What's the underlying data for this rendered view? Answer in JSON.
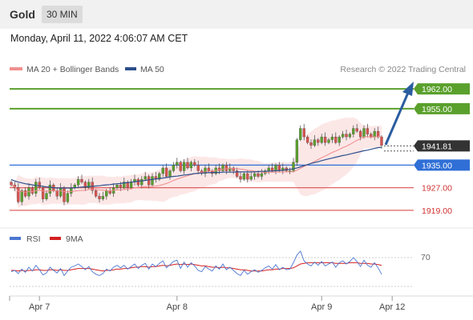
{
  "header": {
    "symbol": "Gold",
    "timeframe": "30 MIN"
  },
  "datetime": "Monday, April 11, 2022 4:06:07 AM CET",
  "legend": {
    "bollinger": "MA 20 + Bollinger Bands",
    "ma50": "MA 50",
    "credit": "Research © 2022 Trading Central"
  },
  "rsi_legend": {
    "rsi": "RSI",
    "ma": "9MA"
  },
  "colors": {
    "green": "#5aa02c",
    "blue": "#2f6fd6",
    "red": "#e06060",
    "dark": "#333333",
    "bullish": "#5aa02c",
    "bearish": "#d9534f",
    "arrow": "#2a5d9f"
  },
  "chart_data": {
    "type": "candlestick",
    "ylim": [
      1915,
      1966
    ],
    "x_ticks": [
      {
        "label": "Apr 7",
        "index": 8
      },
      {
        "label": "Apr 8",
        "index": 47
      },
      {
        "label": "Apr 9",
        "index": 88
      },
      {
        "label": "Apr 12",
        "index": 108
      }
    ],
    "levels": [
      {
        "value": 1962.0,
        "label": "1962.00",
        "kind": "resistance"
      },
      {
        "value": 1955.0,
        "label": "1955.00",
        "kind": "resistance"
      },
      {
        "value": 1941.81,
        "label": "1941.81",
        "kind": "last"
      },
      {
        "value": 1935.0,
        "label": "1935.00",
        "kind": "pivot"
      },
      {
        "value": 1927.0,
        "label": "1927.00",
        "kind": "support"
      },
      {
        "value": 1919.0,
        "label": "1919.00",
        "kind": "support"
      }
    ],
    "close": [
      1928,
      1927,
      1922,
      1926,
      1924,
      1927,
      1925,
      1929,
      1927,
      1923,
      1925,
      1928,
      1926,
      1924,
      1927,
      1922,
      1925,
      1927,
      1928,
      1930,
      1929,
      1927,
      1929,
      1926,
      1924,
      1923,
      1924,
      1926,
      1925,
      1927,
      1928,
      1927,
      1929,
      1927,
      1929,
      1930,
      1928,
      1930,
      1931,
      1928,
      1931,
      1930,
      1932,
      1934,
      1931,
      1933,
      1935,
      1936,
      1933,
      1936,
      1934,
      1936,
      1935,
      1933,
      1932,
      1934,
      1933,
      1932,
      1934,
      1933,
      1935,
      1933,
      1934,
      1933,
      1931,
      1930,
      1932,
      1930,
      1931,
      1932,
      1931,
      1932,
      1933,
      1934,
      1933,
      1935,
      1933,
      1934,
      1933,
      1933,
      1936,
      1944,
      1948,
      1945,
      1943,
      1942,
      1944,
      1943,
      1945,
      1943,
      1944,
      1945,
      1943,
      1945,
      1946,
      1945,
      1946,
      1948,
      1947,
      1945,
      1948,
      1946,
      1945,
      1947,
      1945,
      1942
    ],
    "ma50": [
      1929.9,
      1929.4,
      1929.0,
      1928.7,
      1928.4,
      1928.2,
      1928.0,
      1927.8,
      1927.7,
      1927.5,
      1927.3,
      1927.2,
      1927.0,
      1926.9,
      1926.9,
      1926.9,
      1926.9,
      1926.9,
      1927.0,
      1927.1,
      1927.2,
      1927.3,
      1927.4,
      1927.5,
      1927.6,
      1927.7,
      1927.9,
      1928.0,
      1928.1,
      1928.3,
      1928.4,
      1928.5,
      1928.7,
      1928.8,
      1929.0,
      1929.1,
      1929.3,
      1929.4,
      1929.6,
      1929.8,
      1929.9,
      1930.1,
      1930.3,
      1930.4,
      1930.6,
      1930.8,
      1931.0,
      1931.1,
      1931.3,
      1931.5,
      1931.6,
      1931.8,
      1932.0,
      1932.1,
      1932.2,
      1932.3,
      1932.3,
      1932.4,
      1932.4,
      1932.4,
      1932.5,
      1932.5,
      1932.5,
      1932.5,
      1932.6,
      1932.6,
      1932.6,
      1932.6,
      1932.6,
      1932.6,
      1932.7,
      1932.8,
      1932.8,
      1932.9,
      1932.9,
      1933.0,
      1933.1,
      1933.2,
      1933.4,
      1933.5,
      1933.7,
      1934.0,
      1934.4,
      1934.8,
      1935.2,
      1935.6,
      1935.9,
      1936.2,
      1936.6,
      1936.9,
      1937.2,
      1937.5,
      1937.8,
      1938.1,
      1938.4,
      1938.6,
      1938.9,
      1939.2,
      1939.5,
      1939.8,
      1940.1,
      1940.3,
      1940.6,
      1940.9,
      1941.2,
      1941.3
    ],
    "rsi_axis_label": "70",
    "rsi": [
      48,
      50,
      45,
      52,
      47,
      55,
      49,
      58,
      51,
      43,
      46,
      55,
      50,
      46,
      53,
      42,
      49,
      55,
      57,
      60,
      56,
      51,
      56,
      48,
      44,
      42,
      45,
      52,
      49,
      55,
      58,
      54,
      58,
      52,
      56,
      60,
      53,
      58,
      61,
      52,
      60,
      56,
      61,
      65,
      54,
      59,
      64,
      66,
      53,
      63,
      55,
      62,
      57,
      50,
      48,
      56,
      52,
      49,
      57,
      52,
      60,
      51,
      55,
      50,
      45,
      42,
      50,
      44,
      48,
      51,
      47,
      50,
      54,
      57,
      52,
      59,
      51,
      55,
      51,
      52,
      62,
      74,
      80,
      65,
      60,
      57,
      63,
      58,
      64,
      57,
      60,
      63,
      55,
      62,
      65,
      60,
      64,
      70,
      64,
      56,
      66,
      58,
      55,
      62,
      54,
      44
    ],
    "rsi_ma": [
      50,
      50,
      49,
      50,
      49,
      50,
      50,
      51,
      51,
      50,
      50,
      51,
      51,
      50,
      51,
      50,
      50,
      51,
      52,
      53,
      53,
      53,
      53,
      52,
      51,
      50,
      49,
      50,
      50,
      51,
      52,
      52,
      53,
      53,
      54,
      55,
      55,
      56,
      56,
      55,
      56,
      56,
      57,
      58,
      57,
      58,
      59,
      60,
      59,
      60,
      59,
      60,
      59,
      58,
      57,
      57,
      56,
      55,
      55,
      54,
      55,
      54,
      54,
      53,
      52,
      51,
      51,
      50,
      49,
      49,
      49,
      49,
      50,
      51,
      51,
      52,
      52,
      53,
      53,
      53,
      54,
      57,
      60,
      61,
      62,
      62,
      62,
      62,
      62,
      62,
      62,
      62,
      61,
      61,
      61,
      61,
      62,
      62,
      62,
      61,
      61,
      61,
      60,
      60,
      59,
      58
    ]
  }
}
